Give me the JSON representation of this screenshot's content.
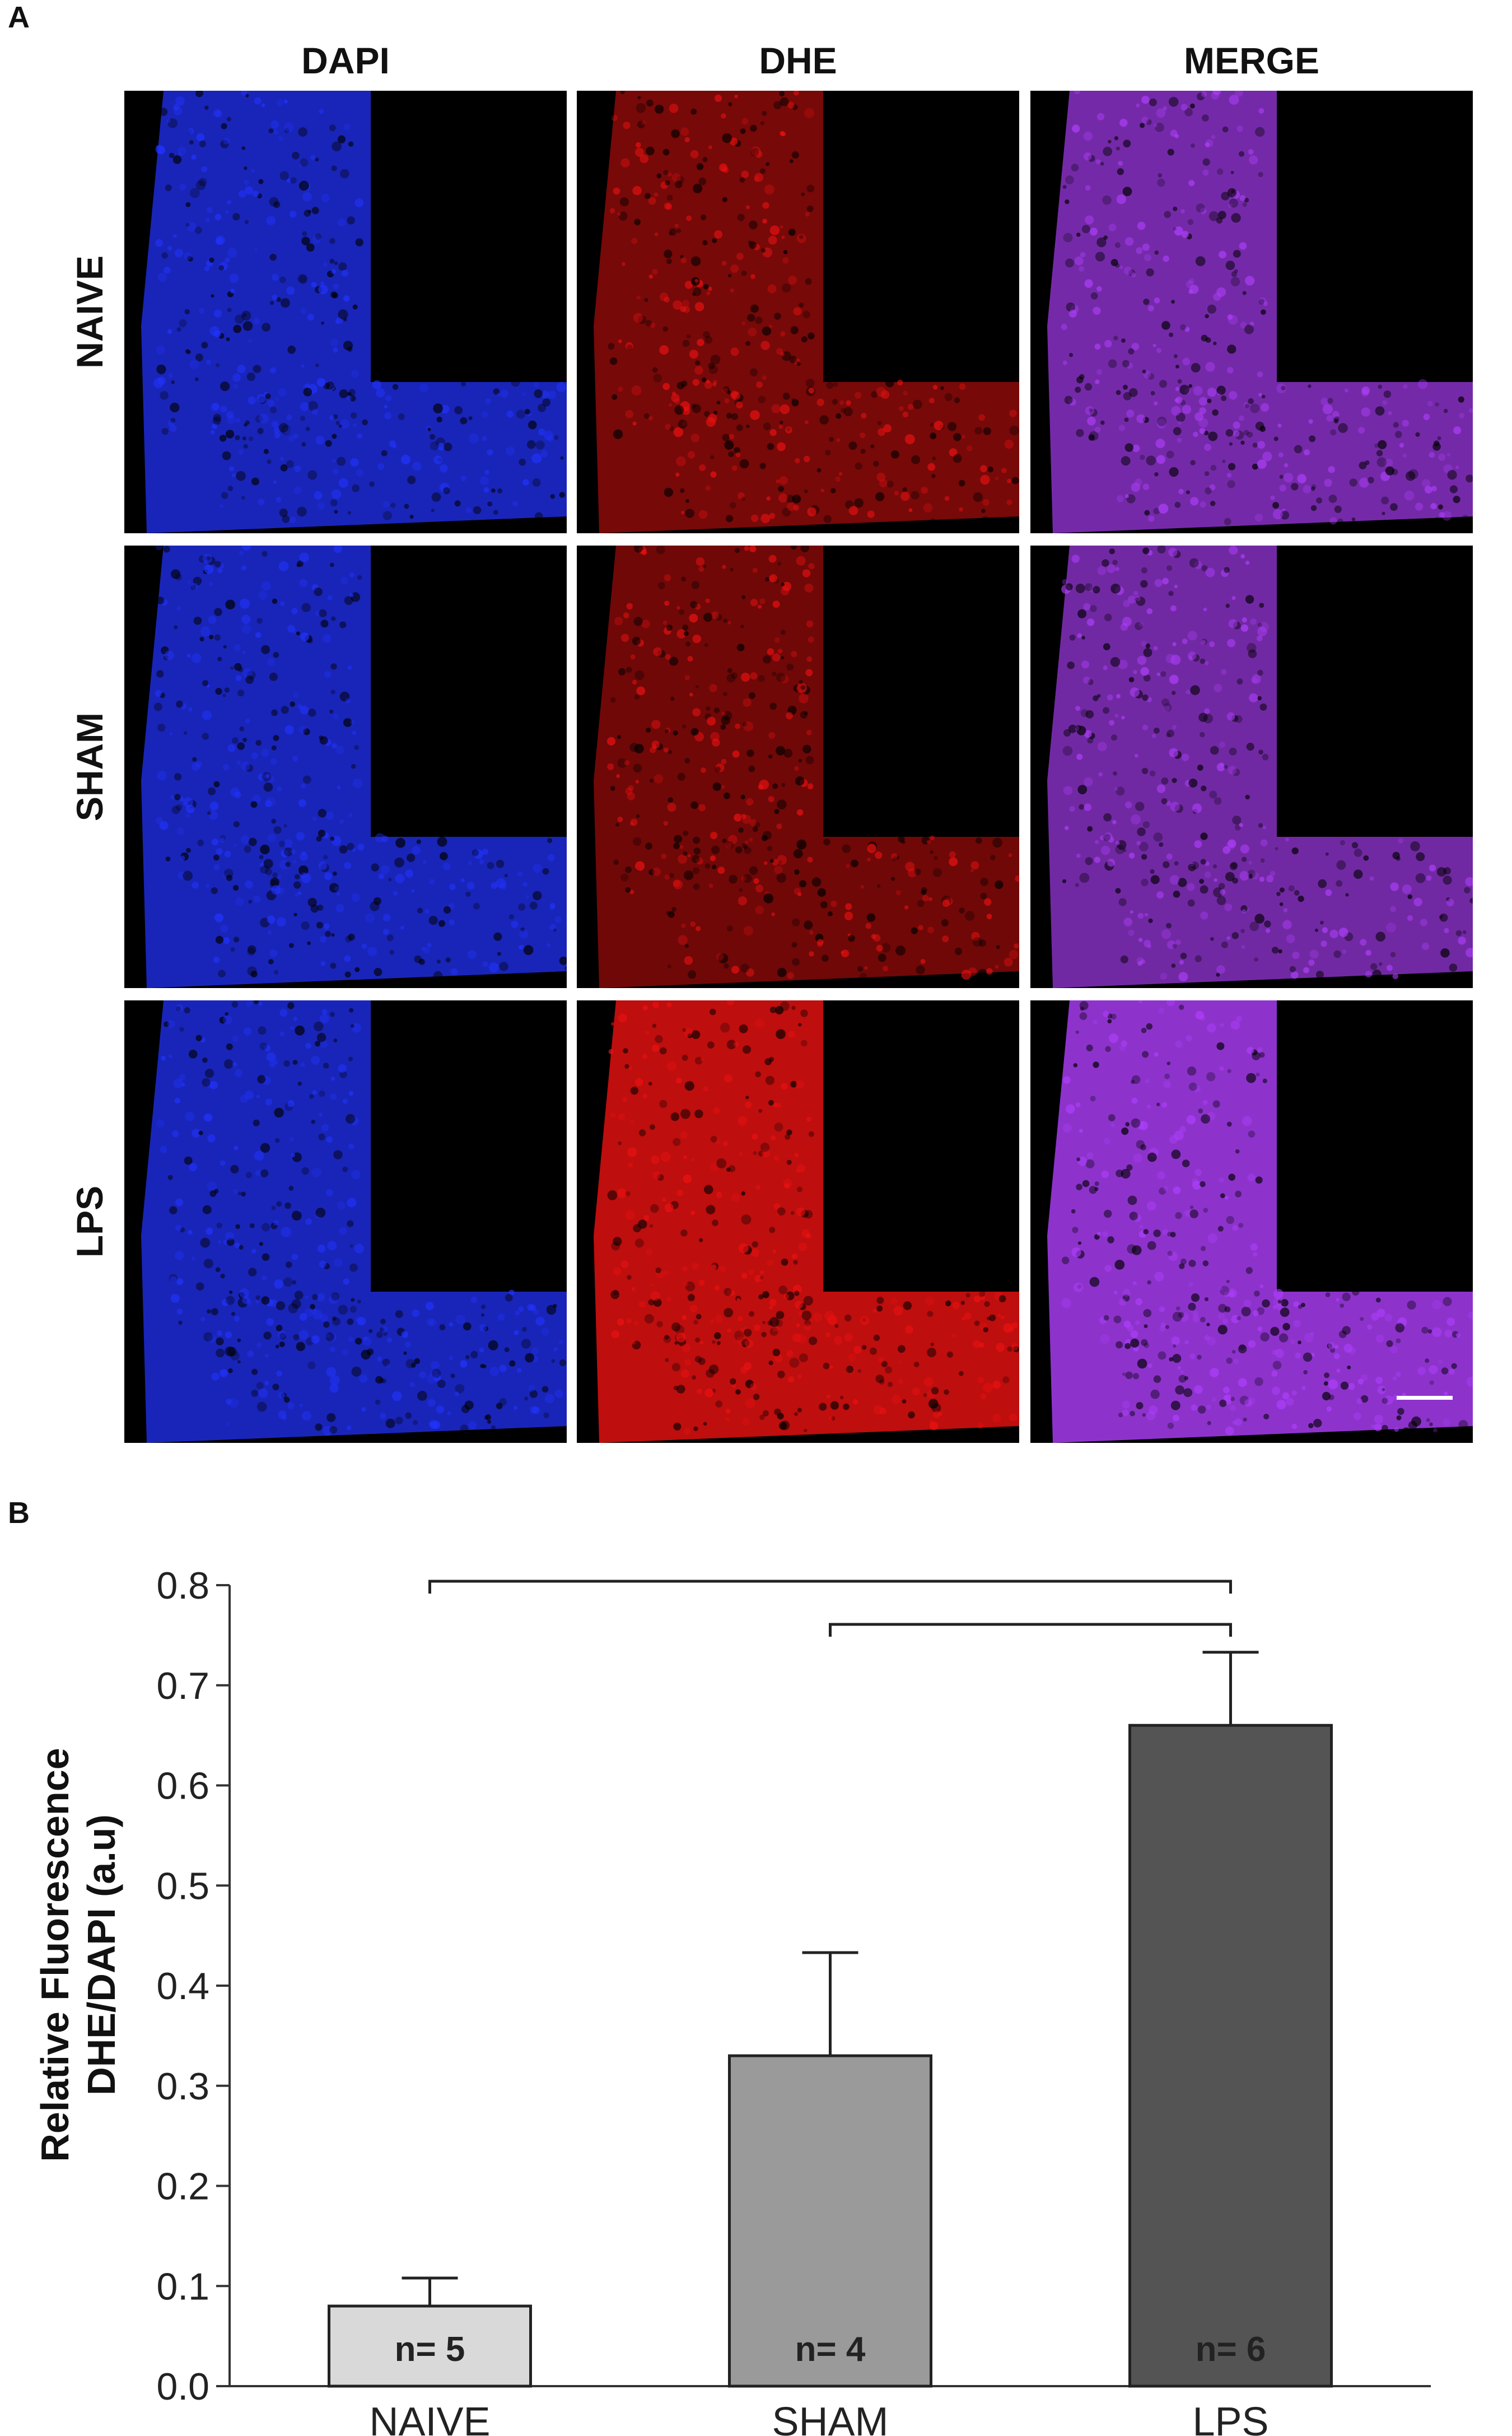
{
  "panels": {
    "a": "A",
    "b": "B"
  },
  "columns": [
    "DAPI",
    "DHE",
    "MERGE"
  ],
  "rows": [
    "NAIVE",
    "SHAM",
    "LPS"
  ],
  "channel_colors": {
    "dapi": "#2233ff",
    "dhe": "#ee1111",
    "merge": "#b040ff"
  },
  "red_intensity": [
    0.45,
    0.4,
    1.0
  ],
  "chart_data": {
    "type": "bar",
    "categories": [
      "NAIVE",
      "SHAM",
      "LPS"
    ],
    "values": [
      0.08,
      0.33,
      0.66
    ],
    "errors": [
      0.028,
      0.103,
      0.073
    ],
    "bar_colors": [
      "#d9d9d9",
      "#9a9a9a",
      "#545454"
    ],
    "n_labels": [
      "n= 5",
      "n= 4",
      "n= 6"
    ],
    "ylabel_line1": "Relative Fluorescence",
    "ylabel_line2": "DHE/DAPI (a.u)",
    "ylim": [
      0,
      0.8
    ],
    "yticks": [
      "0.0",
      "0.1",
      "0.2",
      "0.3",
      "0.4",
      "0.5",
      "0.6",
      "0.7",
      "0.8"
    ],
    "comparisons": [
      {
        "from": "NAIVE",
        "to": "LPS"
      },
      {
        "from": "SHAM",
        "to": "LPS"
      }
    ],
    "grid": false,
    "legend": "none"
  }
}
